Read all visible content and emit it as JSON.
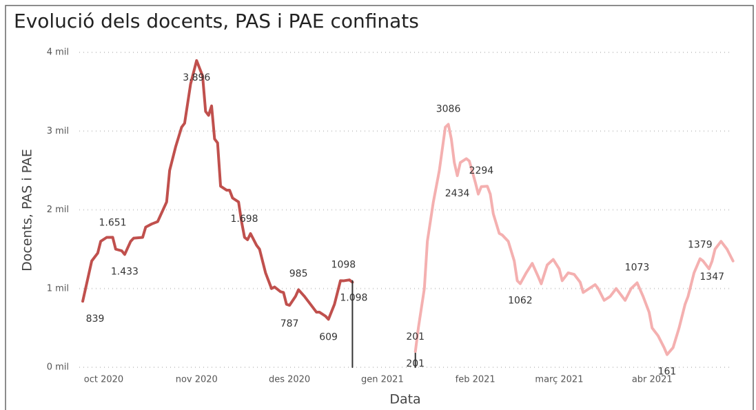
{
  "chart_data": {
    "type": "line",
    "title": "Evolució dels docents, PAS i PAE confinats",
    "xlabel": "Data",
    "ylabel": "Docents, PAS i PAE",
    "xlim": [
      -3,
      218
    ],
    "xticks": [
      {
        "value": 7,
        "label": "oct 2020"
      },
      {
        "value": 38,
        "label": "nov 2020"
      },
      {
        "value": 69,
        "label": "des 2020"
      },
      {
        "value": 100,
        "label": "gen 2021"
      },
      {
        "value": 131,
        "label": "feb 2021"
      },
      {
        "value": 159,
        "label": "març 2021"
      },
      {
        "value": 190,
        "label": "abr 2021"
      }
    ],
    "ylim": [
      0,
      4000
    ],
    "yticks": [
      {
        "value": 0,
        "label": "0 mil"
      },
      {
        "value": 1000,
        "label": "1 mil"
      },
      {
        "value": 2000,
        "label": "2 mil"
      },
      {
        "value": 3000,
        "label": "3 mil"
      },
      {
        "value": 4000,
        "label": "4 mil"
      }
    ],
    "grid": true,
    "series": [
      {
        "color": "#c0504d",
        "x": [
          0,
          3,
          5,
          6,
          8,
          10,
          11,
          13,
          14,
          16,
          17,
          20,
          21,
          23,
          25,
          28,
          29,
          31,
          33,
          34,
          36,
          38,
          40,
          41,
          42,
          43,
          44,
          45,
          46,
          48,
          49,
          50,
          52,
          53,
          54,
          55,
          56,
          58,
          59,
          61,
          63,
          64,
          66,
          67,
          68,
          69,
          71,
          72,
          74,
          76,
          78,
          79,
          81,
          82,
          84,
          86,
          87,
          89,
          90
        ],
        "values": [
          839,
          1350,
          1450,
          1600,
          1650,
          1651,
          1500,
          1480,
          1433,
          1600,
          1640,
          1650,
          1780,
          1820,
          1850,
          2100,
          2500,
          2800,
          3050,
          3100,
          3600,
          3896,
          3700,
          3250,
          3200,
          3320,
          2900,
          2850,
          2300,
          2250,
          2250,
          2150,
          2100,
          1850,
          1650,
          1620,
          1698,
          1550,
          1500,
          1200,
          1000,
          1020,
          960,
          950,
          800,
          787,
          900,
          985,
          900,
          800,
          700,
          700,
          650,
          609,
          800,
          1100,
          1098,
          1110,
          1080
        ],
        "value_labels": [
          "839",
          null,
          null,
          null,
          null,
          "1.651",
          null,
          null,
          "1.433",
          null,
          null,
          null,
          null,
          null,
          null,
          null,
          null,
          null,
          null,
          null,
          null,
          "3.896",
          null,
          null,
          null,
          null,
          null,
          null,
          null,
          null,
          null,
          null,
          null,
          null,
          null,
          null,
          "1.698",
          null,
          null,
          null,
          null,
          null,
          null,
          null,
          null,
          "787",
          null,
          "985",
          null,
          null,
          null,
          null,
          null,
          "609",
          null,
          null,
          "1098",
          null,
          null
        ]
      },
      {
        "color": "#333333",
        "x": [
          90,
          90,
          100,
          111,
          111
        ],
        "values": [
          1098,
          0,
          null,
          0,
          201
        ],
        "value_labels": [
          "1.098",
          null,
          null,
          null,
          "201"
        ]
      },
      {
        "color": "#f4b0b0",
        "x": [
          111,
          112,
          114,
          115,
          117,
          119,
          121,
          122,
          123,
          124,
          125,
          126,
          128,
          129,
          131,
          132,
          133,
          135,
          136,
          137,
          139,
          140,
          142,
          144,
          145,
          146,
          148,
          150,
          152,
          153,
          155,
          157,
          159,
          160,
          162,
          164,
          166,
          167,
          169,
          171,
          172,
          174,
          176,
          178,
          179,
          181,
          183,
          185,
          187,
          189,
          190,
          192,
          194,
          195,
          197,
          199,
          201,
          202,
          204,
          206,
          207,
          209,
          210,
          211,
          213,
          214,
          215,
          217
        ],
        "values": [
          201,
          500,
          1000,
          1600,
          2100,
          2500,
          3050,
          3086,
          2900,
          2600,
          2434,
          2600,
          2650,
          2620,
          2350,
          2200,
          2294,
          2300,
          2200,
          1950,
          1700,
          1680,
          1600,
          1350,
          1100,
          1062,
          1200,
          1320,
          1150,
          1060,
          1300,
          1370,
          1250,
          1100,
          1200,
          1180,
          1080,
          950,
          1000,
          1050,
          1000,
          850,
          900,
          1000,
          950,
          850,
          1000,
          1073,
          900,
          700,
          500,
          400,
          250,
          161,
          250,
          500,
          800,
          900,
          1200,
          1379,
          1350,
          1250,
          1347,
          1500,
          1600,
          1550,
          1500,
          1350
        ],
        "value_labels": [
          "201",
          null,
          null,
          null,
          null,
          null,
          null,
          "3086",
          null,
          null,
          "2434",
          null,
          null,
          null,
          null,
          null,
          "2294",
          null,
          null,
          null,
          null,
          null,
          null,
          null,
          null,
          "1062",
          null,
          null,
          null,
          null,
          null,
          null,
          null,
          null,
          null,
          null,
          null,
          null,
          null,
          null,
          null,
          null,
          null,
          null,
          null,
          null,
          null,
          "1073",
          null,
          null,
          null,
          null,
          null,
          "161",
          null,
          null,
          null,
          null,
          null,
          "1379",
          null,
          null,
          "1347",
          null,
          null,
          null,
          null,
          null
        ]
      }
    ]
  }
}
